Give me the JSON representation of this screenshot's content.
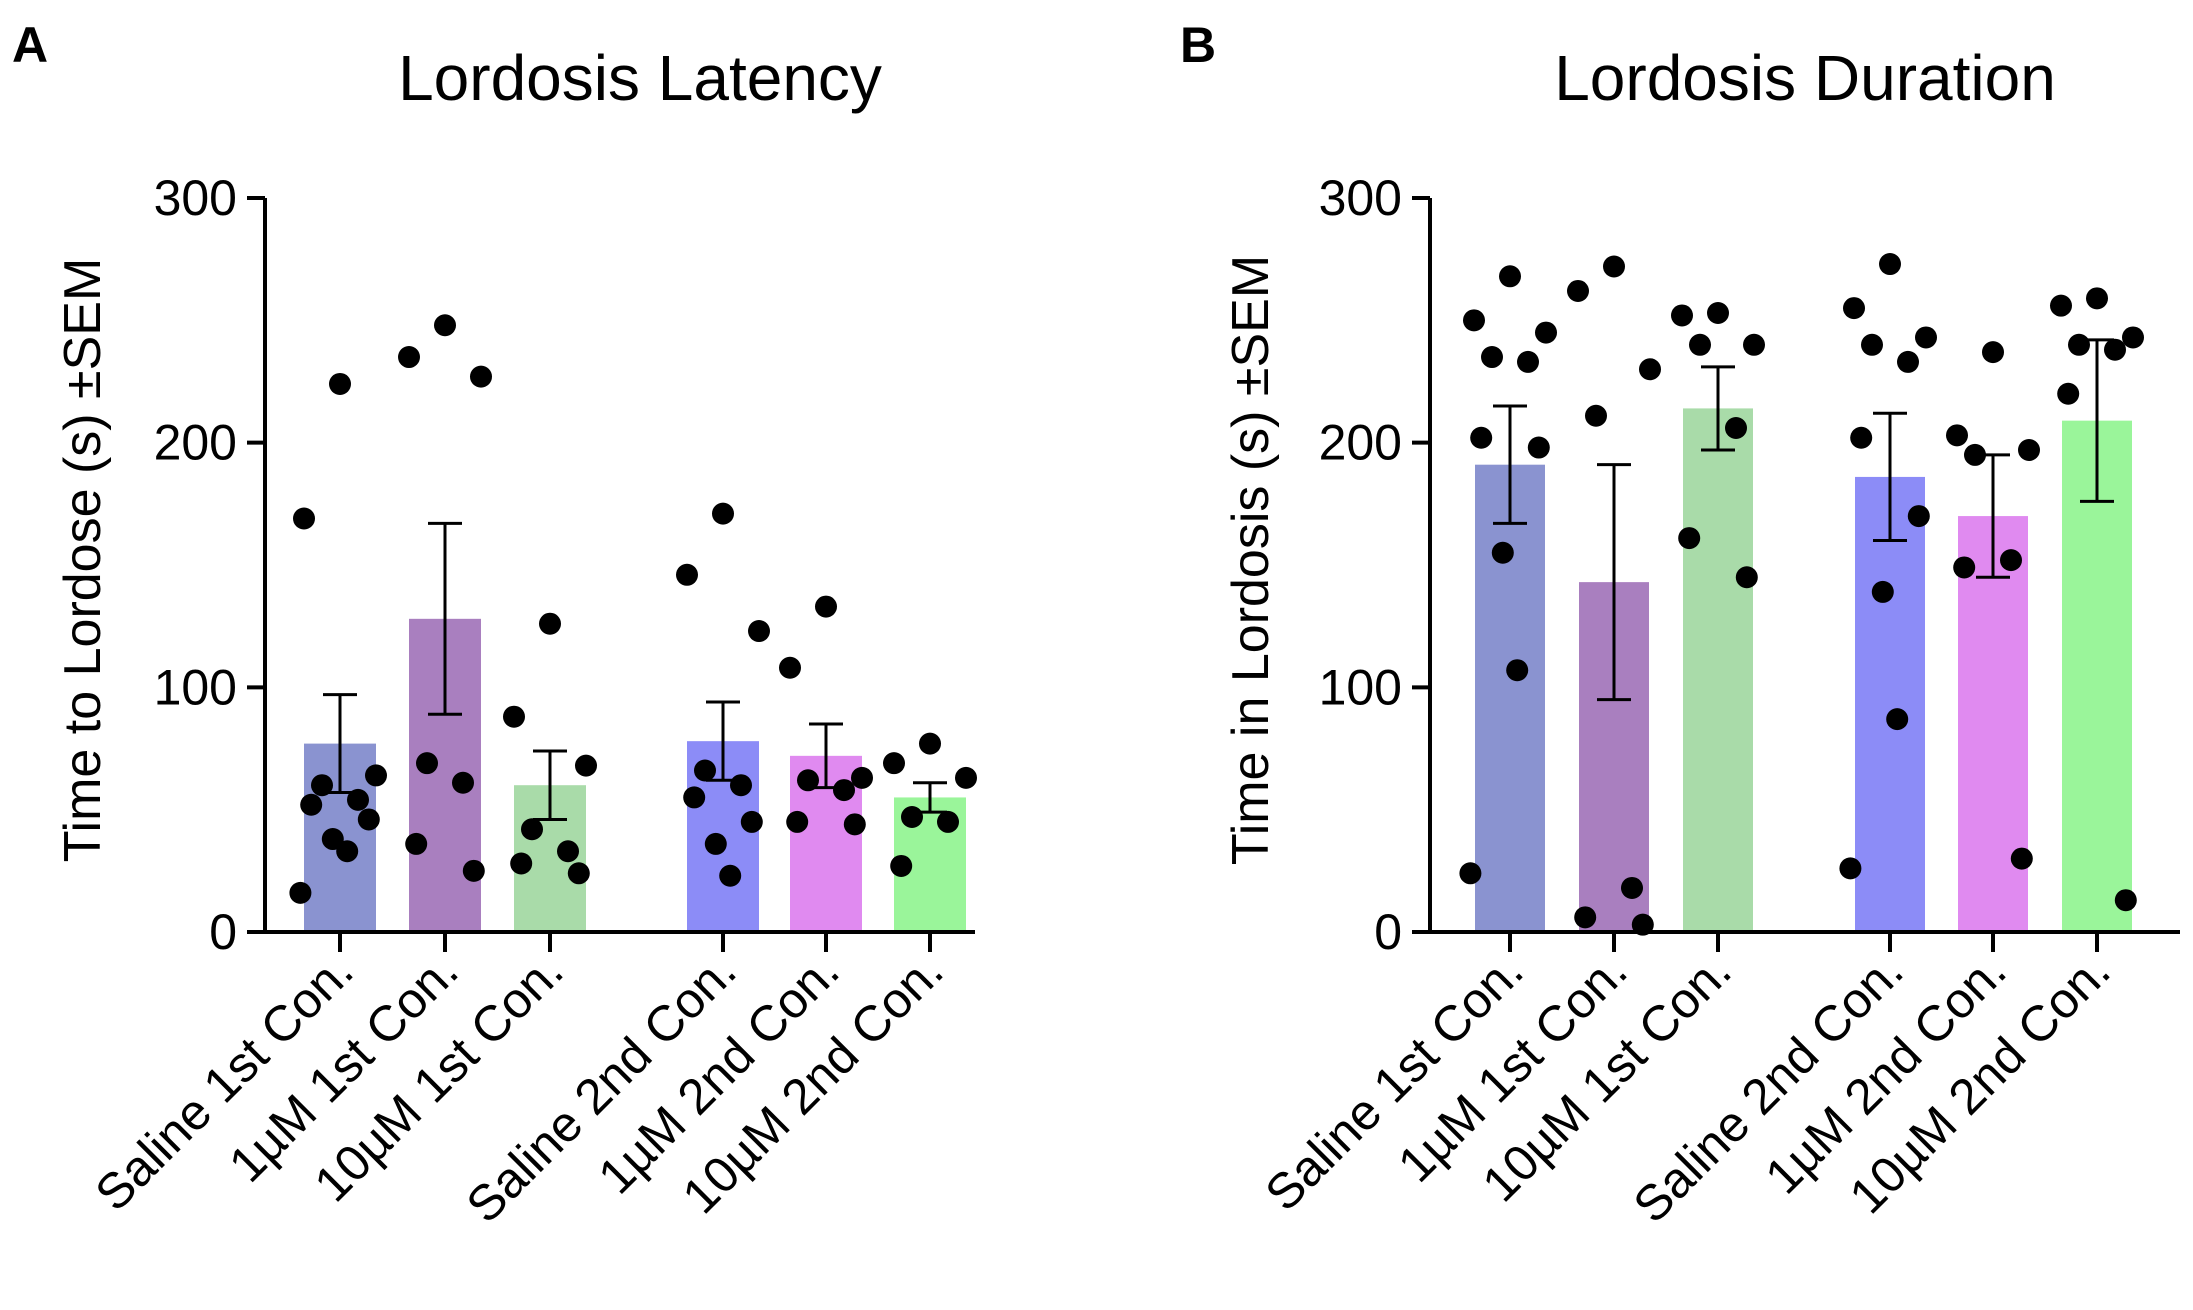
{
  "chart_data": [
    {
      "type": "bar",
      "panel": "A",
      "title": "Lordosis Latency",
      "xlabel": "",
      "ylabel": "Time to Lordose (s) ±SEM",
      "ylim": [
        0,
        300
      ],
      "yticks": [
        0,
        100,
        200,
        300
      ],
      "grid": false,
      "categories": [
        "Saline 1st Con.",
        "1µM 1st Con.",
        "10µM 1st Con.",
        "Saline 2nd Con.",
        "1µM 2nd Con.",
        "10µM 2nd Con."
      ],
      "values": [
        77,
        128,
        60,
        78,
        72,
        55
      ],
      "sem": [
        20,
        39,
        14,
        16,
        13,
        6
      ],
      "bar_colors": [
        "#8a93d0",
        "#a97fbf",
        "#a9dba9",
        "#8c8cf7",
        "#e08af0",
        "#9af59a"
      ],
      "points": [
        [
          224,
          169,
          64,
          60,
          54,
          52,
          46,
          38,
          33,
          16
        ],
        [
          248,
          235,
          227,
          69,
          61,
          36,
          25
        ],
        [
          126,
          88,
          68,
          42,
          33,
          28,
          24
        ],
        [
          171,
          146,
          123,
          66,
          60,
          55,
          45,
          36,
          23
        ],
        [
          133,
          108,
          63,
          62,
          58,
          45,
          44
        ],
        [
          77,
          69,
          63,
          47,
          45,
          27
        ]
      ]
    },
    {
      "type": "bar",
      "panel": "B",
      "title": "Lordosis Duration",
      "xlabel": "",
      "ylabel": "Time in Lordosis (s) ±SEM",
      "ylim": [
        0,
        300
      ],
      "yticks": [
        0,
        100,
        200,
        300
      ],
      "grid": false,
      "categories": [
        "Saline 1st Con.",
        "1µM 1st Con.",
        "10µM 1st Con.",
        "Saline 2nd Con.",
        "1µM 2nd Con.",
        "10µM 2nd Con."
      ],
      "values": [
        191,
        143,
        214,
        186,
        170,
        209
      ],
      "sem": [
        24,
        48,
        17,
        26,
        25,
        33
      ],
      "bar_colors": [
        "#8a93d0",
        "#a97fbf",
        "#a9dba9",
        "#8c8cf7",
        "#e08af0",
        "#9af59a"
      ],
      "points": [
        [
          268,
          250,
          245,
          235,
          233,
          202,
          198,
          155,
          107,
          24
        ],
        [
          272,
          262,
          230,
          211,
          18,
          6,
          3
        ],
        [
          253,
          252,
          240,
          240,
          206,
          161,
          145
        ],
        [
          273,
          255,
          243,
          240,
          233,
          202,
          170,
          139,
          87,
          26
        ],
        [
          237,
          203,
          197,
          195,
          152,
          149,
          30
        ],
        [
          259,
          256,
          243,
          240,
          238,
          220,
          13
        ]
      ]
    }
  ]
}
